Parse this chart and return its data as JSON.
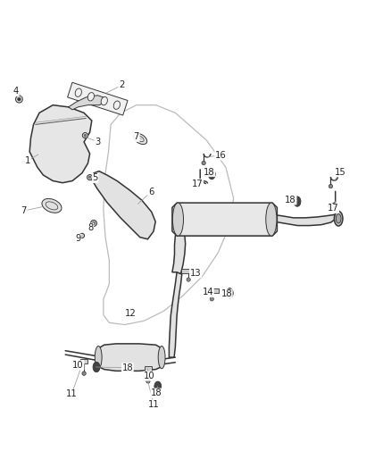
{
  "bg_color": "#ffffff",
  "line_color": "#333333",
  "label_color": "#222222",
  "leader_color": "#999999",
  "fig_width": 4.38,
  "fig_height": 5.33,
  "dpi": 100,
  "label_positions": {
    "4": [
      0.038,
      0.877,
      0.055,
      0.862
    ],
    "2": [
      0.31,
      0.893,
      0.27,
      0.873
    ],
    "1": [
      0.068,
      0.698,
      0.095,
      0.715
    ],
    "3": [
      0.248,
      0.748,
      0.215,
      0.76
    ],
    "5": [
      0.242,
      0.654,
      0.225,
      0.654
    ],
    "6": [
      0.385,
      0.618,
      0.352,
      0.588
    ],
    "7a": [
      0.058,
      0.57,
      0.105,
      0.58
    ],
    "7b": [
      0.348,
      0.76,
      0.36,
      0.755
    ],
    "8": [
      0.23,
      0.526,
      0.238,
      0.538
    ],
    "9": [
      0.198,
      0.498,
      0.208,
      0.506
    ],
    "10a": [
      0.198,
      0.173,
      0.212,
      0.183
    ],
    "10b": [
      0.382,
      0.145,
      0.377,
      0.163
    ],
    "11a": [
      0.181,
      0.098,
      0.203,
      0.16
    ],
    "11b": [
      0.393,
      0.071,
      0.375,
      0.14
    ],
    "12": [
      0.332,
      0.306,
      0.338,
      0.318
    ],
    "13": [
      0.5,
      0.41,
      0.502,
      0.413
    ],
    "14": [
      0.532,
      0.36,
      0.542,
      0.363
    ],
    "15": [
      0.873,
      0.67,
      0.858,
      0.648
    ],
    "16": [
      0.565,
      0.713,
      0.528,
      0.708
    ],
    "17a": [
      0.505,
      0.64,
      0.51,
      0.648
    ],
    "17b": [
      0.854,
      0.576,
      0.86,
      0.594
    ],
    "18a": [
      0.535,
      0.67,
      0.542,
      0.666
    ],
    "18b": [
      0.58,
      0.356,
      0.588,
      0.358
    ],
    "18c": [
      0.745,
      0.598,
      0.762,
      0.596
    ],
    "18d": [
      0.325,
      0.166,
      0.244,
      0.168
    ],
    "18e": [
      0.4,
      0.101,
      0.402,
      0.118
    ]
  },
  "label_map": {
    "4": "4",
    "2": "2",
    "1": "1",
    "3": "3",
    "5": "5",
    "6": "6",
    "7a": "7",
    "7b": "7",
    "8": "8",
    "9": "9",
    "10a": "10",
    "10b": "10",
    "11a": "11",
    "11b": "11",
    "12": "12",
    "13": "13",
    "14": "14",
    "15": "15",
    "16": "16",
    "17a": "17",
    "17b": "17",
    "18a": "18",
    "18b": "18",
    "18c": "18",
    "18d": "18",
    "18e": "18"
  }
}
